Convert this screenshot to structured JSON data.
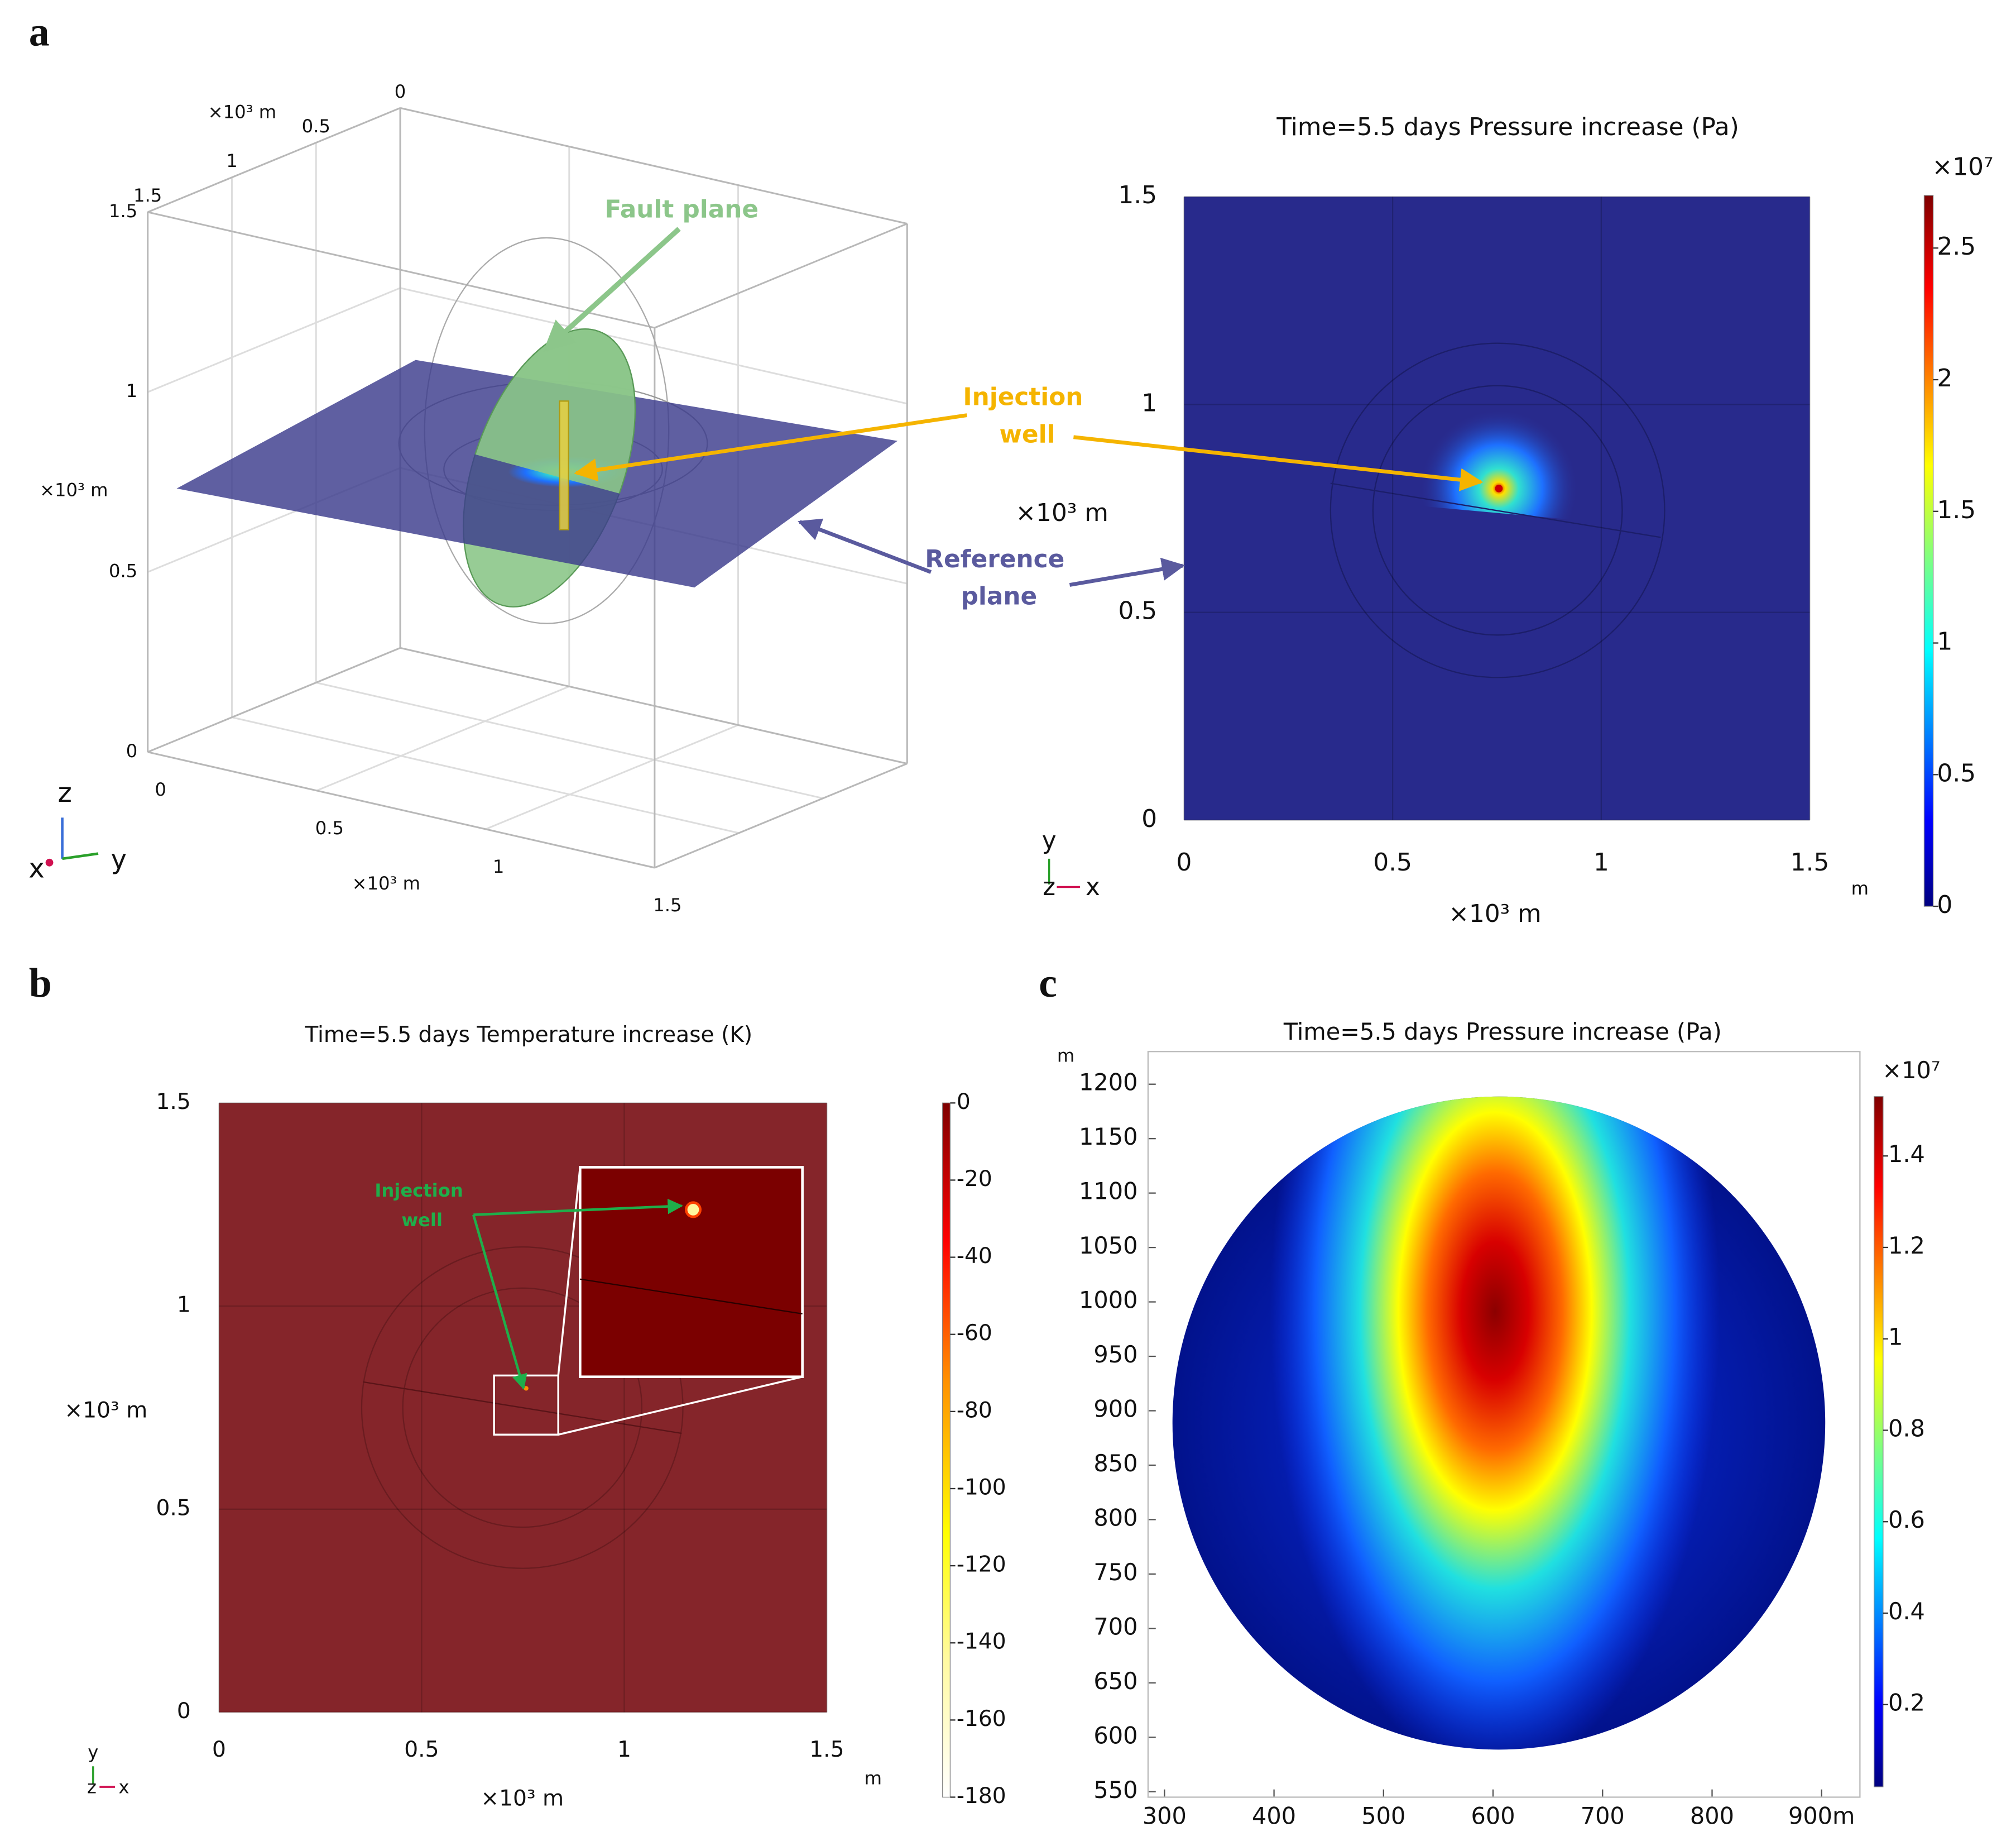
{
  "panel_labels": [
    "a",
    "b",
    "c"
  ],
  "chart_data": [
    {
      "type": "box3d",
      "xlabel": "×10³ m",
      "ylabel": "×10³ m",
      "zlabel": "×10³ m",
      "xlim": [
        0,
        1.5
      ],
      "ylim": [
        0,
        1.5
      ],
      "zlim": [
        0,
        1.5
      ],
      "xticks": [
        0,
        0.5,
        1,
        1.5
      ],
      "yticks": [
        0,
        0.5,
        1,
        1.5
      ],
      "zticks": [
        0,
        0.5,
        1,
        1.5
      ],
      "grid": true,
      "triad": [
        "z",
        "x",
        "y"
      ],
      "annotations": [
        {
          "text": "Fault plane",
          "color": "#8cc68a"
        },
        {
          "text": [
            "Injection",
            "well"
          ],
          "color": "#f5b400"
        },
        {
          "text": [
            "Reference",
            "plane"
          ],
          "color": "#5a5a9e"
        }
      ]
    },
    {
      "type": "heatmap",
      "title": "Time=5.5 days   Pressure increase (Pa)",
      "xlabel": "×10³ m",
      "ylabel": "×10³ m",
      "xunit": "m",
      "xlim": [
        0,
        1.5
      ],
      "ylim": [
        0,
        1.5
      ],
      "xticks": [
        0,
        0.5,
        1,
        1.5
      ],
      "yticks": [
        0,
        0.5,
        1,
        1.5
      ],
      "grid": true,
      "colormap": "jet",
      "clim": [
        0,
        2.7
      ],
      "cticks": [
        0,
        0.5,
        1,
        1.5,
        2,
        2.5
      ],
      "cmultiplier": "×10⁷",
      "triad": [
        "y",
        "z",
        "x"
      ]
    },
    {
      "type": "heatmap",
      "title": "Time=5.5 days Temperature increase  (K)",
      "xlabel": "×10³ m",
      "ylabel": "×10³ m",
      "xunit": "m",
      "xlim": [
        0,
        1.5
      ],
      "ylim": [
        0,
        1.5
      ],
      "xticks": [
        0,
        0.5,
        1,
        1.5
      ],
      "yticks": [
        0,
        0.5,
        1,
        1.5
      ],
      "grid": true,
      "colormap": "hot",
      "clim": [
        -180,
        0
      ],
      "cticks": [
        0,
        -20,
        -40,
        -60,
        -80,
        -100,
        -120,
        -140,
        -160,
        -180
      ],
      "triad": [
        "y",
        "z",
        "x"
      ],
      "annotations": [
        {
          "text": [
            "Injection",
            "well"
          ],
          "color": "#1fae4a"
        }
      ]
    },
    {
      "type": "heatmap",
      "title": "Time=5.5 days  Pressure increase (Pa)",
      "yunit": "m",
      "xlim": [
        285,
        935
      ],
      "ylim": [
        545,
        1230
      ],
      "xticks": [
        300,
        400,
        500,
        600,
        700,
        800,
        {
          "value": 900,
          "label": "900m"
        }
      ],
      "yticks": [
        550,
        600,
        650,
        700,
        750,
        800,
        850,
        900,
        950,
        1000,
        1050,
        1100,
        1150,
        1200
      ],
      "grid": false,
      "frame": true,
      "colormap": "jet",
      "clim": [
        0.02,
        1.53
      ],
      "cticks": [
        0.2,
        0.4,
        0.6,
        0.8,
        1,
        1.2,
        1.4
      ],
      "cmultiplier": "×10⁷"
    }
  ]
}
